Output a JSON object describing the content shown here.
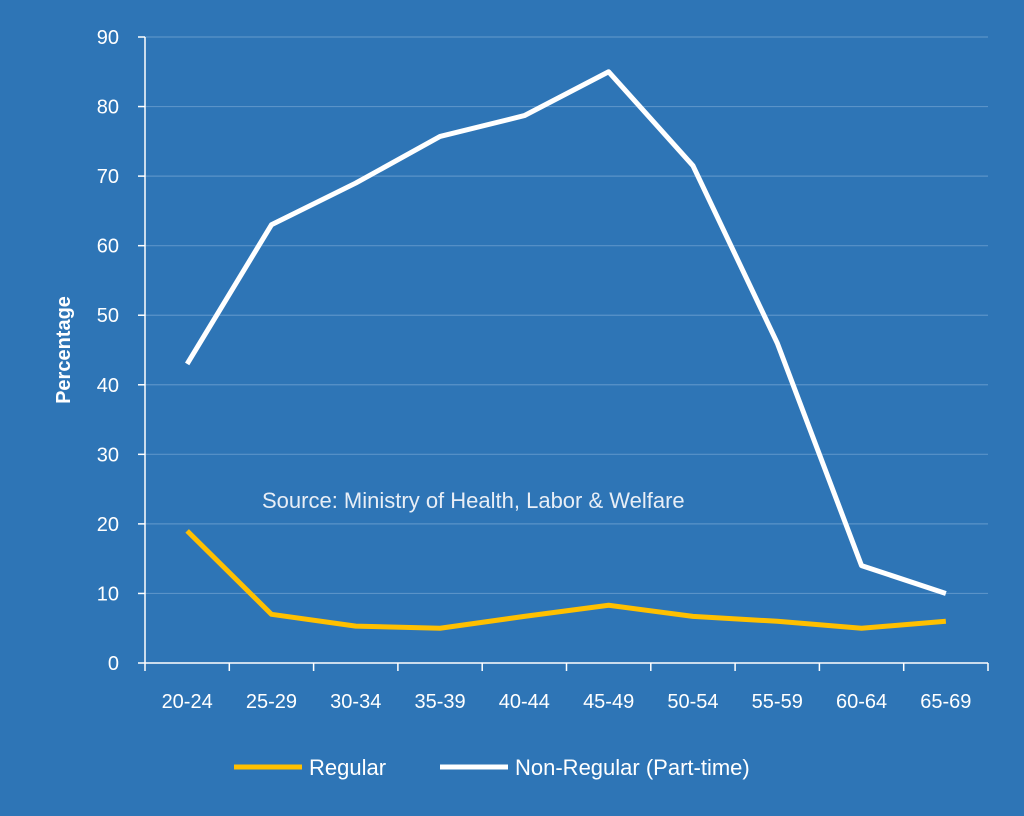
{
  "chart_data": {
    "type": "line",
    "categories": [
      "20-24",
      "25-29",
      "30-34",
      "35-39",
      "40-44",
      "45-49",
      "50-54",
      "55-59",
      "60-64",
      "65-69"
    ],
    "series": [
      {
        "name": "Regular",
        "color": "#FFC000",
        "values": [
          19,
          7,
          5.3,
          5,
          6.7,
          8.3,
          6.7,
          6,
          5,
          6
        ]
      },
      {
        "name": "Non-Regular (Part-time)",
        "color": "#FFFFFF",
        "values": [
          43,
          63,
          69,
          75.7,
          78.7,
          85,
          71.5,
          46,
          14,
          10
        ]
      }
    ],
    "ylabel": "Percentage",
    "xlabel": "",
    "ylim": [
      0,
      90
    ],
    "yticks": [
      0,
      10,
      20,
      30,
      40,
      50,
      60,
      70,
      80,
      90
    ],
    "annotation": "Source: Ministry of Health, Labor & Welfare",
    "grid": true,
    "legend_position": "bottom"
  },
  "colors": {
    "background": "#2E75B6",
    "gridline": "#5A93C8",
    "axis": "#FFFFFF"
  }
}
